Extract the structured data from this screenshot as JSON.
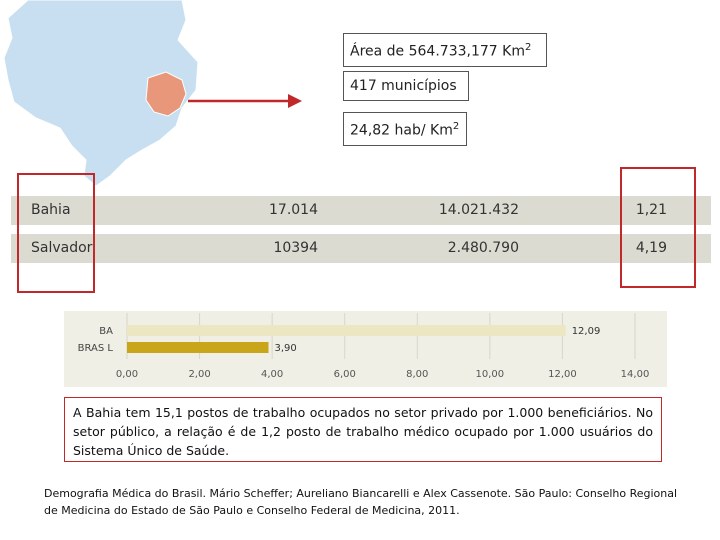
{
  "info": {
    "area_prefix": "Área de 564.733,177 Km",
    "area_sup": "2",
    "municipios": "417 municípios",
    "density_prefix": "24,82 hab/ Km",
    "density_sup": "2"
  },
  "table": {
    "rows": [
      {
        "name": "Bahia",
        "v1": "17.014",
        "v2": "14.021.432",
        "v3": "1,21"
      },
      {
        "name": "Salvador",
        "v1": "10394",
        "v2": "2.480.790",
        "v3": "4,19"
      }
    ]
  },
  "chart_data": {
    "type": "bar",
    "orientation": "horizontal",
    "categories": [
      "BA",
      "BRAS L"
    ],
    "values": [
      12.09,
      3.9
    ],
    "value_labels": [
      "12,09",
      "3,90"
    ],
    "colors": [
      "#ece6c2",
      "#c9a519"
    ],
    "xlim": [
      0,
      14
    ],
    "xticks": [
      "0,00",
      "2,00",
      "4,00",
      "6,00",
      "8,00",
      "10,00",
      "12,00",
      "14,00"
    ],
    "grid": true
  },
  "paragraph": "A Bahia tem 15,1 postos de trabalho ocupados no setor privado por 1.000 beneficiários. No setor público, a relação é de 1,2 posto de trabalho médico ocupado por 1.000 usuários do Sistema Único de Saúde.",
  "citation": "Demografia Médica do Brasil. Mário Scheffer; Aureliano Biancarelli e Alex Cassenote. São Paulo: Conselho Regional de Medicina do Estado de São Paulo e Conselho Federal de Medicina, 2011.",
  "colors": {
    "map_fill": "#c7dff0",
    "bahia_fill": "#e8977a",
    "highlight": "#c0282a",
    "row_bg": "#dcdbd1"
  }
}
